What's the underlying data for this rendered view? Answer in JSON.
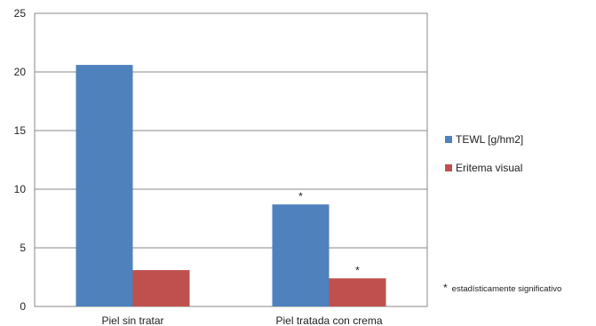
{
  "chart_data": {
    "type": "bar",
    "categories": [
      "Piel sin tratar",
      "Piel tratada con crema"
    ],
    "series": [
      {
        "name": "TEWL [g/hm2]",
        "values": [
          20.6,
          8.7
        ],
        "color": "#4f81bd"
      },
      {
        "name": "Eritema visual",
        "values": [
          3.1,
          2.4
        ],
        "color": "#c0504d"
      }
    ],
    "annotations": [
      {
        "series": 0,
        "category": 1,
        "text": "*"
      },
      {
        "series": 1,
        "category": 1,
        "text": "*"
      }
    ],
    "ylim": [
      0,
      25
    ],
    "yticks": [
      0,
      5,
      10,
      15,
      20,
      25
    ],
    "grid": true,
    "legend": "right",
    "title": "",
    "xlabel": "",
    "ylabel": ""
  },
  "footnote": {
    "symbol": "*",
    "text": "estadísticamente significativo"
  }
}
